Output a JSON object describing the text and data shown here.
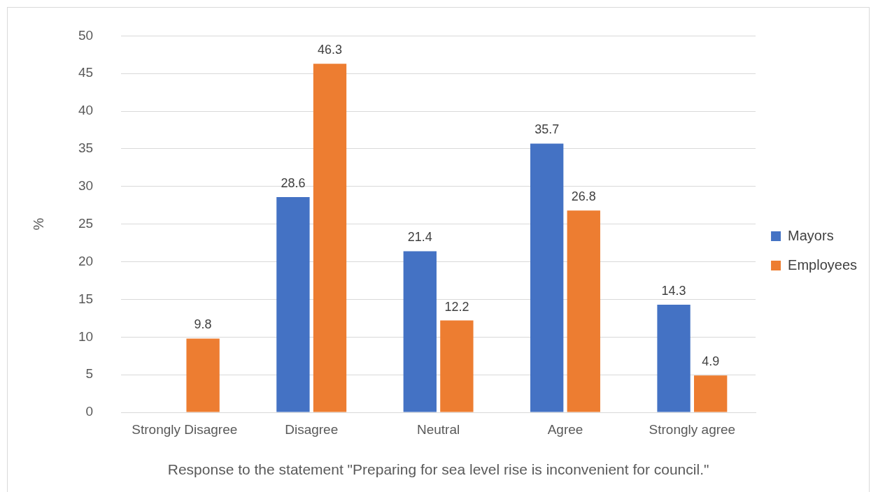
{
  "chart_data": {
    "type": "bar",
    "xlabel": "Response to the statement \"Preparing for sea level rise is inconvenient for council.\"",
    "ylabel": "%",
    "categories": [
      "Strongly Disagree",
      "Disagree",
      "Neutral",
      "Agree",
      "Strongly agree"
    ],
    "series": [
      {
        "name": "Mayors",
        "color": "#4472c4",
        "values": [
          0,
          28.6,
          21.4,
          35.7,
          14.3
        ],
        "value_labels": [
          null,
          "28.6",
          "21.4",
          "35.7",
          "14.3"
        ]
      },
      {
        "name": "Employees",
        "color": "#ed7d31",
        "values": [
          9.8,
          46.3,
          12.2,
          26.8,
          4.9
        ],
        "value_labels": [
          "9.8",
          "46.3",
          "12.2",
          "26.8",
          "4.9"
        ]
      }
    ],
    "ylim": [
      0,
      50
    ],
    "yticks": [
      0,
      5,
      10,
      15,
      20,
      25,
      30,
      35,
      40,
      45,
      50
    ],
    "grid": "y",
    "legend": "right"
  }
}
